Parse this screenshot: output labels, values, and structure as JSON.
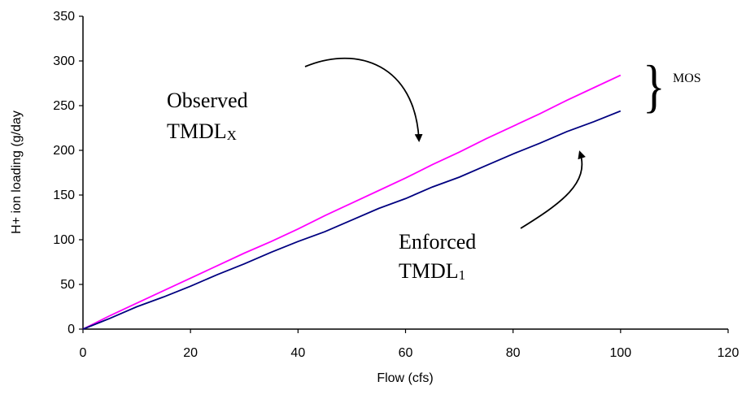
{
  "chart_data": {
    "type": "line",
    "xlabel": "Flow (cfs)",
    "ylabel": "H+ ion loading (g/day",
    "xlim": [
      0,
      120
    ],
    "ylim": [
      0,
      350
    ],
    "xticks": [
      0,
      20,
      40,
      60,
      80,
      100,
      120
    ],
    "yticks": [
      0,
      50,
      100,
      150,
      200,
      250,
      300,
      350
    ],
    "grid": false,
    "series": [
      {
        "color": "#ff00ff",
        "x": [
          0,
          5,
          10,
          15,
          20,
          25,
          30,
          35,
          40,
          45,
          50,
          55,
          60,
          65,
          70,
          75,
          80,
          85,
          90,
          95,
          100
        ],
        "y": [
          0,
          15,
          29,
          43,
          57,
          71,
          85,
          98,
          112,
          127,
          141,
          155,
          169,
          184,
          198,
          213,
          227,
          241,
          256,
          270,
          284
        ]
      },
      {
        "color": "#000080",
        "x": [
          0,
          5,
          10,
          15,
          20,
          25,
          30,
          35,
          40,
          45,
          50,
          55,
          60,
          65,
          70,
          75,
          80,
          85,
          90,
          95,
          100
        ],
        "y": [
          0,
          12,
          25,
          36,
          48,
          61,
          73,
          86,
          98,
          109,
          122,
          135,
          146,
          159,
          170,
          183,
          196,
          208,
          221,
          232,
          244
        ]
      }
    ],
    "annotations": {
      "observed_line1": "Observed",
      "observed_line2": "TMDL",
      "observed_sub": "X",
      "enforced_line1": "Enforced",
      "enforced_line2": "TMDL",
      "enforced_sub": "1",
      "mos": "MOS"
    }
  }
}
